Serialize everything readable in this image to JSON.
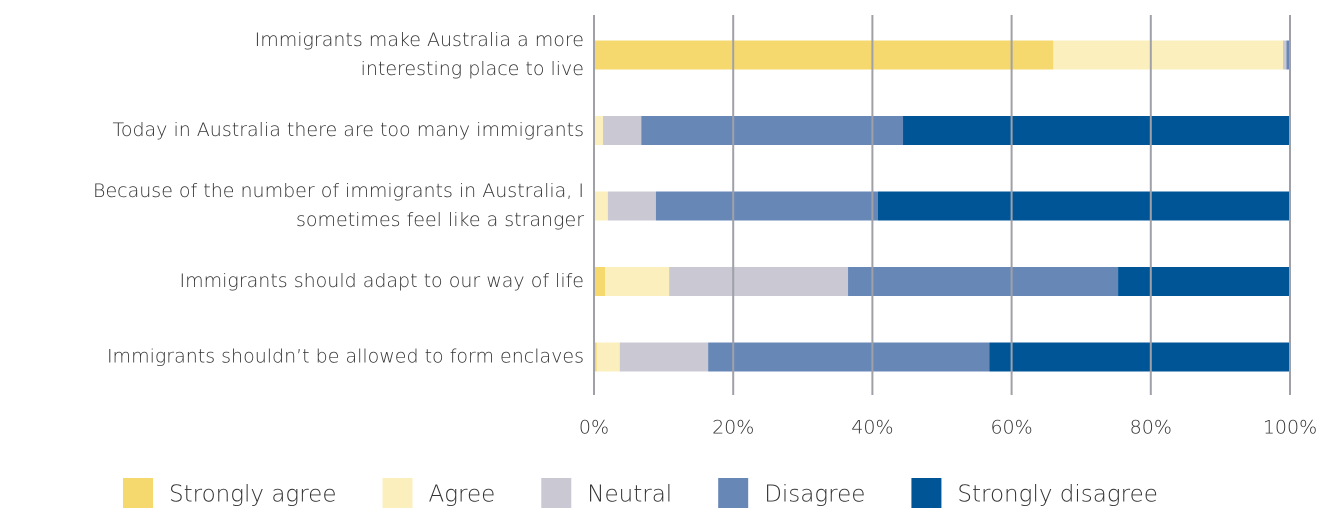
{
  "chart_data": {
    "type": "stacked-bar-horizontal",
    "categories": [
      [
        "Immigrants make Australia a more",
        "interesting place to live"
      ],
      [
        "Today in Australia there are too many immigrants"
      ],
      [
        "Because of the number of immigrants in Australia, I",
        "sometimes feel like a stranger"
      ],
      [
        "Immigrants should adapt to our way of life"
      ],
      [
        "Immigrants shouldn’t be allowed to form enclaves"
      ]
    ],
    "series": [
      {
        "name": "Strongly agree",
        "color": "#f5d96e",
        "values": [
          66,
          0,
          0,
          1.6,
          0.4
        ]
      },
      {
        "name": "Agree",
        "color": "#fbefbd",
        "values": [
          33,
          1.3,
          2.0,
          9.2,
          3.3
        ]
      },
      {
        "name": "Neutral",
        "color": "#c9c8d3",
        "values": [
          0.5,
          5.5,
          6.9,
          25.7,
          12.7
        ]
      },
      {
        "name": "Disagree",
        "color": "#6787b7",
        "values": [
          0.5,
          37.6,
          31.9,
          38.8,
          40.4
        ]
      },
      {
        "name": "Strongly disagree",
        "color": "#005597",
        "values": [
          0,
          55.6,
          59.2,
          24.7,
          43.2
        ]
      }
    ],
    "xlim": [
      0,
      100
    ],
    "xticks": [
      {
        "value": 0,
        "label": "0%"
      },
      {
        "value": 20,
        "label": "20%"
      },
      {
        "value": 40,
        "label": "40%"
      },
      {
        "value": 60,
        "label": "60%"
      },
      {
        "value": 80,
        "label": "80%"
      },
      {
        "value": 100,
        "label": "100%"
      }
    ],
    "grid": true,
    "legend": "bottom"
  }
}
